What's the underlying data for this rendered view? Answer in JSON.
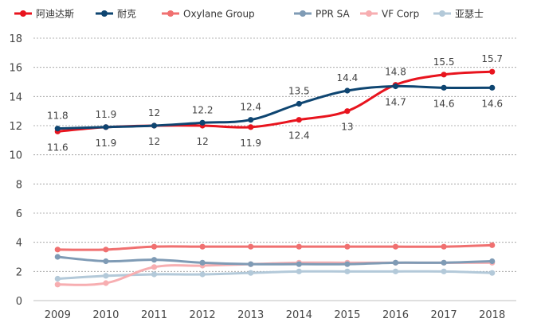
{
  "chart_data": {
    "type": "line",
    "title": "",
    "xlabel": "",
    "ylabel": "",
    "x": [
      "2009",
      "2010",
      "2011",
      "2012",
      "2013",
      "2014",
      "2015",
      "2016",
      "2017",
      "2018"
    ],
    "ylim": [
      0,
      18
    ],
    "yticks": [
      0,
      2,
      4,
      6,
      8,
      10,
      12,
      14,
      16,
      18
    ],
    "grid": "horizontal-dotted",
    "legend_position": "top",
    "series": [
      {
        "name": "阿迪达斯",
        "color": "#e8141e",
        "values": [
          11.6,
          11.9,
          12,
          12,
          11.9,
          12.4,
          13,
          14.8,
          15.5,
          15.7
        ],
        "labels": [
          "11.6",
          "11.9",
          "12",
          "12",
          "11.9",
          "12.4",
          "13",
          "14.8",
          "15.5",
          "15.7"
        ]
      },
      {
        "name": "耐克",
        "color": "#0e4571",
        "values": [
          11.8,
          11.9,
          12,
          12.2,
          12.4,
          13.5,
          14.4,
          14.7,
          14.6,
          14.6
        ],
        "labels": [
          "11.8",
          "11.9",
          "12",
          "12.2",
          "12.4",
          "13.5",
          "14.4",
          "14.7",
          "14.6",
          "14.6"
        ]
      },
      {
        "name": "Oxylane Group",
        "color": "#f07070",
        "values": [
          3.5,
          3.5,
          3.7,
          3.7,
          3.7,
          3.7,
          3.7,
          3.7,
          3.7,
          3.8
        ]
      },
      {
        "name": "PPR SA",
        "color": "#7f9bb5",
        "values": [
          3.0,
          2.7,
          2.8,
          2.6,
          2.5,
          2.5,
          2.5,
          2.6,
          2.6,
          2.7
        ]
      },
      {
        "name": "VF Corp",
        "color": "#f7aeb1",
        "values": [
          1.1,
          1.2,
          2.3,
          2.4,
          2.5,
          2.6,
          2.6,
          2.6,
          2.6,
          2.6
        ]
      },
      {
        "name": "亚瑟士",
        "color": "#b3c9d9",
        "values": [
          1.5,
          1.7,
          1.8,
          1.8,
          1.9,
          2.0,
          2.0,
          2.0,
          2.0,
          1.9
        ]
      }
    ]
  }
}
